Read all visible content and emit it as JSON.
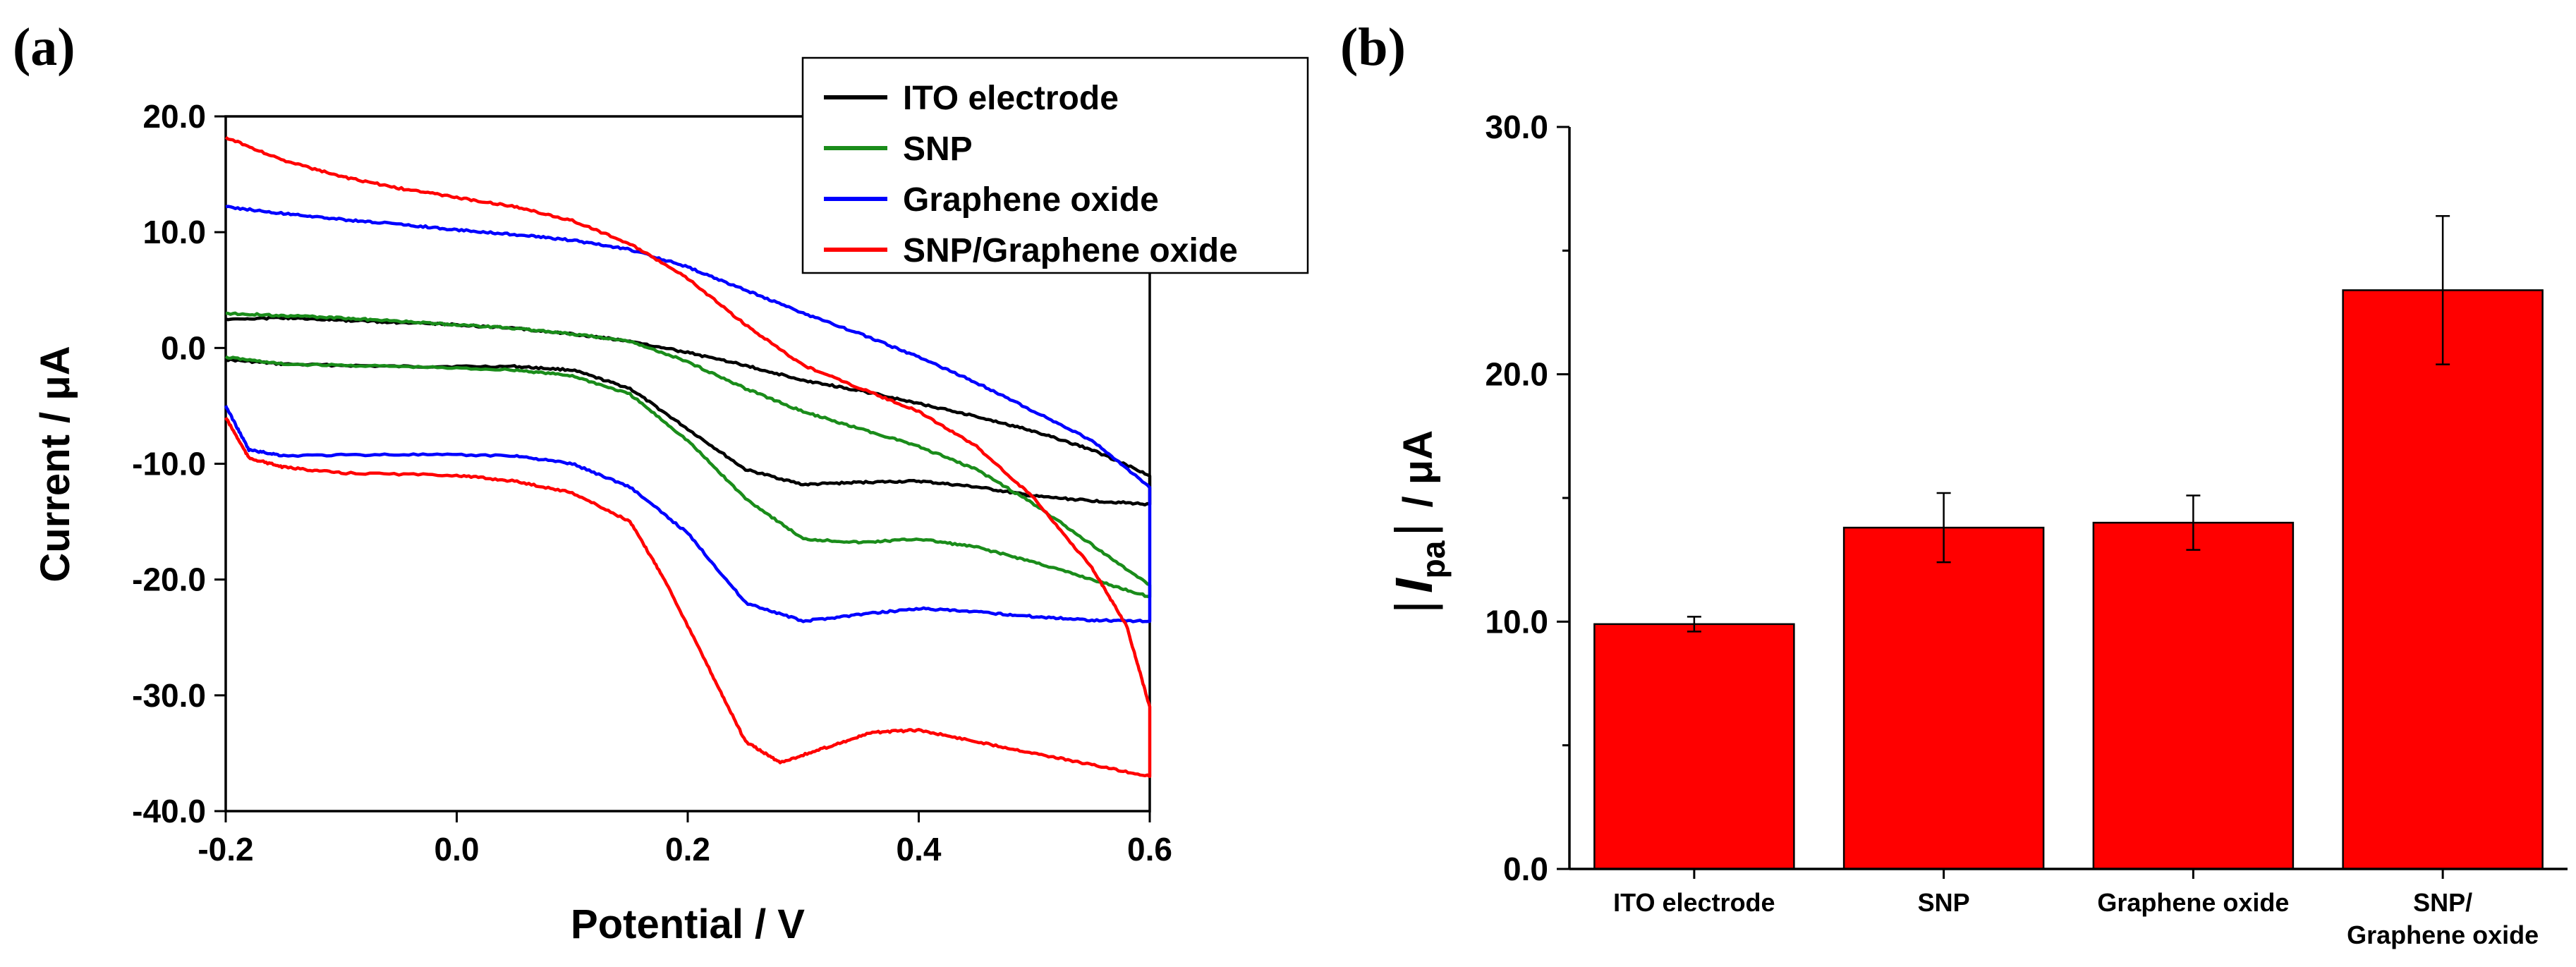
{
  "panels": {
    "a_label": "(a)",
    "b_label": "(b)"
  },
  "chart_data": [
    {
      "type": "line",
      "title": "",
      "xlabel": "Potential / V",
      "ylabel": "Current / μA",
      "xlim": [
        -0.2,
        0.6
      ],
      "ylim": [
        -40,
        20
      ],
      "x_ticks": [
        "-0.2",
        "0.0",
        "0.2",
        "0.4",
        "0.6"
      ],
      "y_ticks": [
        "-40.0",
        "-30.0",
        "-20.0",
        "-10.0",
        "0.0",
        "10.0",
        "20.0"
      ],
      "grid": false,
      "legend_position": "top-right",
      "series": [
        {
          "name": "ITO electrode",
          "color": "#000000",
          "forward": [
            [
              -0.2,
              -1.0
            ],
            [
              -0.15,
              -1.4
            ],
            [
              -0.05,
              -1.6
            ],
            [
              0.05,
              -1.6
            ],
            [
              0.1,
              -1.9
            ],
            [
              0.15,
              -3.5
            ],
            [
              0.2,
              -7.0
            ],
            [
              0.25,
              -10.5
            ],
            [
              0.3,
              -11.8
            ],
            [
              0.35,
              -11.6
            ],
            [
              0.4,
              -11.5
            ],
            [
              0.45,
              -12.0
            ],
            [
              0.5,
              -12.8
            ],
            [
              0.55,
              -13.2
            ],
            [
              0.6,
              -13.5
            ]
          ],
          "reverse": [
            [
              0.6,
              -11.0
            ],
            [
              0.55,
              -8.8
            ],
            [
              0.5,
              -7.2
            ],
            [
              0.45,
              -5.9
            ],
            [
              0.4,
              -4.8
            ],
            [
              0.35,
              -3.7
            ],
            [
              0.3,
              -2.8
            ],
            [
              0.25,
              -1.5
            ],
            [
              0.2,
              -0.4
            ],
            [
              0.15,
              0.6
            ],
            [
              0.1,
              1.2
            ],
            [
              0.05,
              1.7
            ],
            [
              0.0,
              2.0
            ],
            [
              -0.05,
              2.2
            ],
            [
              -0.1,
              2.4
            ],
            [
              -0.15,
              2.6
            ],
            [
              -0.2,
              2.5
            ]
          ]
        },
        {
          "name": "SNP",
          "color": "#1a8c1a",
          "forward": [
            [
              -0.2,
              -0.8
            ],
            [
              -0.15,
              -1.4
            ],
            [
              -0.05,
              -1.6
            ],
            [
              0.05,
              -1.9
            ],
            [
              0.1,
              -2.4
            ],
            [
              0.15,
              -4.0
            ],
            [
              0.2,
              -8.0
            ],
            [
              0.25,
              -13.0
            ],
            [
              0.3,
              -16.5
            ],
            [
              0.35,
              -16.8
            ],
            [
              0.4,
              -16.5
            ],
            [
              0.45,
              -17.2
            ],
            [
              0.5,
              -18.5
            ],
            [
              0.55,
              -20.0
            ],
            [
              0.6,
              -21.5
            ]
          ],
          "reverse": [
            [
              0.6,
              -20.5
            ],
            [
              0.55,
              -17.0
            ],
            [
              0.5,
              -13.5
            ],
            [
              0.45,
              -10.5
            ],
            [
              0.4,
              -8.5
            ],
            [
              0.35,
              -7.0
            ],
            [
              0.3,
              -5.5
            ],
            [
              0.25,
              -3.5
            ],
            [
              0.2,
              -1.2
            ],
            [
              0.15,
              0.6
            ],
            [
              0.1,
              1.2
            ],
            [
              0.05,
              1.7
            ],
            [
              0.0,
              2.0
            ],
            [
              -0.05,
              2.3
            ],
            [
              -0.1,
              2.6
            ],
            [
              -0.15,
              2.8
            ],
            [
              -0.2,
              3.0
            ]
          ]
        },
        {
          "name": "Graphene oxide",
          "color": "#0000ff",
          "forward": [
            [
              -0.2,
              -5.0
            ],
            [
              -0.18,
              -8.8
            ],
            [
              -0.15,
              -9.3
            ],
            [
              -0.05,
              -9.2
            ],
            [
              0.05,
              -9.3
            ],
            [
              0.1,
              -10.0
            ],
            [
              0.15,
              -12.0
            ],
            [
              0.2,
              -16.0
            ],
            [
              0.25,
              -22.0
            ],
            [
              0.3,
              -23.6
            ],
            [
              0.35,
              -23.0
            ],
            [
              0.4,
              -22.5
            ],
            [
              0.45,
              -22.8
            ],
            [
              0.5,
              -23.2
            ],
            [
              0.55,
              -23.5
            ],
            [
              0.6,
              -23.6
            ]
          ],
          "reverse": [
            [
              0.6,
              -12.0
            ],
            [
              0.55,
              -8.0
            ],
            [
              0.5,
              -5.5
            ],
            [
              0.45,
              -3.0
            ],
            [
              0.4,
              -0.8
            ],
            [
              0.35,
              1.2
            ],
            [
              0.3,
              3.0
            ],
            [
              0.25,
              5.0
            ],
            [
              0.2,
              7.0
            ],
            [
              0.15,
              8.5
            ],
            [
              0.1,
              9.3
            ],
            [
              0.05,
              9.8
            ],
            [
              0.0,
              10.2
            ],
            [
              -0.05,
              10.7
            ],
            [
              -0.1,
              11.1
            ],
            [
              -0.15,
              11.6
            ],
            [
              -0.2,
              12.2
            ]
          ]
        },
        {
          "name": "SNP/Graphene oxide",
          "color": "#ff0000",
          "forward": [
            [
              -0.2,
              -6.0
            ],
            [
              -0.18,
              -9.5
            ],
            [
              -0.15,
              -10.3
            ],
            [
              -0.1,
              -10.8
            ],
            [
              0.0,
              -11.0
            ],
            [
              0.05,
              -11.5
            ],
            [
              0.1,
              -12.5
            ],
            [
              0.15,
              -15.0
            ],
            [
              0.18,
              -20.0
            ],
            [
              0.22,
              -28.0
            ],
            [
              0.25,
              -34.0
            ],
            [
              0.28,
              -35.8
            ],
            [
              0.32,
              -34.5
            ],
            [
              0.36,
              -33.2
            ],
            [
              0.4,
              -33.0
            ],
            [
              0.45,
              -34.0
            ],
            [
              0.5,
              -35.0
            ],
            [
              0.55,
              -36.0
            ],
            [
              0.6,
              -37.0
            ]
          ],
          "reverse": [
            [
              0.6,
              -31.0
            ],
            [
              0.58,
              -24.0
            ],
            [
              0.55,
              -19.0
            ],
            [
              0.5,
              -13.0
            ],
            [
              0.45,
              -8.5
            ],
            [
              0.4,
              -5.5
            ],
            [
              0.35,
              -3.5
            ],
            [
              0.3,
              -1.5
            ],
            [
              0.25,
              2.0
            ],
            [
              0.2,
              6.0
            ],
            [
              0.15,
              9.0
            ],
            [
              0.1,
              11.0
            ],
            [
              0.05,
              12.2
            ],
            [
              0.0,
              13.0
            ],
            [
              -0.05,
              13.8
            ],
            [
              -0.1,
              14.8
            ],
            [
              -0.15,
              16.2
            ],
            [
              -0.2,
              18.2
            ]
          ]
        }
      ]
    },
    {
      "type": "bar",
      "title": "",
      "xlabel": "",
      "ylabel_parts": {
        "bar_left": "|",
        "symbol": "I",
        "subscript": "pa",
        "bar_right": "|",
        "unit": "/ μA"
      },
      "ylim": [
        0,
        30
      ],
      "y_ticks": [
        "0.0",
        "10.0",
        "20.0",
        "30.0"
      ],
      "bar_color": "#ff0000",
      "categories": [
        {
          "lines": [
            "ITO electrode"
          ]
        },
        {
          "lines": [
            "SNP"
          ]
        },
        {
          "lines": [
            "Graphene oxide"
          ]
        },
        {
          "lines": [
            "SNP/",
            "Graphene oxide"
          ]
        }
      ],
      "values": [
        9.9,
        13.8,
        14.0,
        23.4
      ],
      "errors": [
        0.3,
        1.4,
        1.1,
        3.0
      ]
    }
  ]
}
